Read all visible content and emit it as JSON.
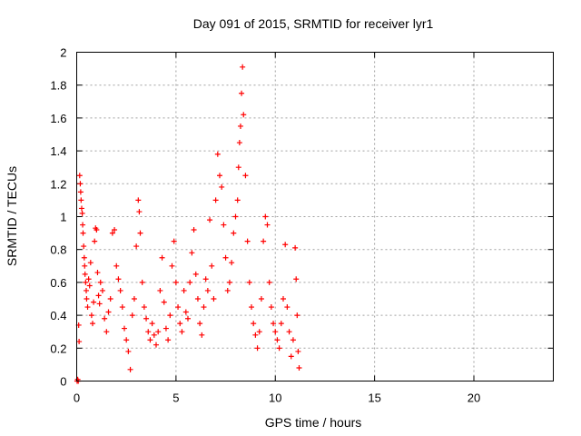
{
  "chart_data": {
    "type": "scatter",
    "title": "Day 091 of 2015, SRMTID for receiver lyr1",
    "xlabel": "GPS time / hours",
    "ylabel": "SRMTID / TECUs",
    "xlim": [
      0,
      24
    ],
    "ylim": [
      0,
      2
    ],
    "xticks": [
      0,
      5,
      10,
      15,
      20
    ],
    "yticks": [
      0,
      0.2,
      0.4,
      0.6,
      0.8,
      1,
      1.2,
      1.4,
      1.6,
      1.8,
      2
    ],
    "xtick_labels": [
      "0",
      "5",
      "10",
      "15",
      "20"
    ],
    "ytick_labels": [
      "0",
      "0.2",
      "0.4",
      "0.6",
      "0.8",
      "1",
      "1.2",
      "1.4",
      "1.6",
      "1.8",
      "2"
    ],
    "grid": true,
    "marker": "+",
    "color": "#ff0000",
    "series": [
      {
        "name": "lyr1",
        "points": [
          [
            0.02,
            0.0
          ],
          [
            0.05,
            0.01
          ],
          [
            0.08,
            0.0
          ],
          [
            0.1,
            0.34
          ],
          [
            0.12,
            0.24
          ],
          [
            0.15,
            1.25
          ],
          [
            0.18,
            1.2
          ],
          [
            0.2,
            1.15
          ],
          [
            0.22,
            1.1
          ],
          [
            0.25,
            1.05
          ],
          [
            0.28,
            1.02
          ],
          [
            0.3,
            0.95
          ],
          [
            0.32,
            0.9
          ],
          [
            0.35,
            0.82
          ],
          [
            0.38,
            0.75
          ],
          [
            0.4,
            0.7
          ],
          [
            0.42,
            0.65
          ],
          [
            0.45,
            0.6
          ],
          [
            0.48,
            0.55
          ],
          [
            0.5,
            0.5
          ],
          [
            0.55,
            0.45
          ],
          [
            0.6,
            0.62
          ],
          [
            0.65,
            0.58
          ],
          [
            0.7,
            0.72
          ],
          [
            0.75,
            0.4
          ],
          [
            0.8,
            0.35
          ],
          [
            0.85,
            0.48
          ],
          [
            0.9,
            0.85
          ],
          [
            0.95,
            0.93
          ],
          [
            1.0,
            0.92
          ],
          [
            1.05,
            0.66
          ],
          [
            1.1,
            0.52
          ],
          [
            1.15,
            0.47
          ],
          [
            1.2,
            0.6
          ],
          [
            1.3,
            0.55
          ],
          [
            1.4,
            0.38
          ],
          [
            1.5,
            0.3
          ],
          [
            1.6,
            0.42
          ],
          [
            1.7,
            0.5
          ],
          [
            1.8,
            0.9
          ],
          [
            1.9,
            0.92
          ],
          [
            2.0,
            0.7
          ],
          [
            2.1,
            0.62
          ],
          [
            2.2,
            0.55
          ],
          [
            2.3,
            0.45
          ],
          [
            2.4,
            0.32
          ],
          [
            2.5,
            0.25
          ],
          [
            2.6,
            0.18
          ],
          [
            2.7,
            0.07
          ],
          [
            2.8,
            0.4
          ],
          [
            2.9,
            0.5
          ],
          [
            3.0,
            0.82
          ],
          [
            3.1,
            1.1
          ],
          [
            3.15,
            1.03
          ],
          [
            3.2,
            0.9
          ],
          [
            3.3,
            0.6
          ],
          [
            3.4,
            0.45
          ],
          [
            3.5,
            0.38
          ],
          [
            3.6,
            0.3
          ],
          [
            3.7,
            0.25
          ],
          [
            3.8,
            0.35
          ],
          [
            3.9,
            0.28
          ],
          [
            4.0,
            0.22
          ],
          [
            4.1,
            0.3
          ],
          [
            4.2,
            0.55
          ],
          [
            4.3,
            0.75
          ],
          [
            4.4,
            0.48
          ],
          [
            4.5,
            0.32
          ],
          [
            4.6,
            0.25
          ],
          [
            4.7,
            0.4
          ],
          [
            4.8,
            0.7
          ],
          [
            4.9,
            0.85
          ],
          [
            5.0,
            0.6
          ],
          [
            5.1,
            0.45
          ],
          [
            5.2,
            0.35
          ],
          [
            5.3,
            0.3
          ],
          [
            5.4,
            0.55
          ],
          [
            5.5,
            0.42
          ],
          [
            5.6,
            0.38
          ],
          [
            5.7,
            0.6
          ],
          [
            5.8,
            0.78
          ],
          [
            5.9,
            0.92
          ],
          [
            6.0,
            0.65
          ],
          [
            6.1,
            0.5
          ],
          [
            6.2,
            0.35
          ],
          [
            6.3,
            0.28
          ],
          [
            6.4,
            0.45
          ],
          [
            6.5,
            0.62
          ],
          [
            6.6,
            0.55
          ],
          [
            6.7,
            0.98
          ],
          [
            6.8,
            0.7
          ],
          [
            6.9,
            0.5
          ],
          [
            7.0,
            1.1
          ],
          [
            7.1,
            1.38
          ],
          [
            7.2,
            1.25
          ],
          [
            7.3,
            1.18
          ],
          [
            7.4,
            0.95
          ],
          [
            7.5,
            0.75
          ],
          [
            7.6,
            0.55
          ],
          [
            7.7,
            0.6
          ],
          [
            7.8,
            0.72
          ],
          [
            7.9,
            0.9
          ],
          [
            8.0,
            1.0
          ],
          [
            8.1,
            1.1
          ],
          [
            8.15,
            1.3
          ],
          [
            8.2,
            1.45
          ],
          [
            8.25,
            1.55
          ],
          [
            8.3,
            1.75
          ],
          [
            8.35,
            1.91
          ],
          [
            8.4,
            1.62
          ],
          [
            8.5,
            1.25
          ],
          [
            8.6,
            0.85
          ],
          [
            8.7,
            0.6
          ],
          [
            8.8,
            0.45
          ],
          [
            8.9,
            0.35
          ],
          [
            9.0,
            0.28
          ],
          [
            9.1,
            0.2
          ],
          [
            9.2,
            0.3
          ],
          [
            9.3,
            0.5
          ],
          [
            9.4,
            0.85
          ],
          [
            9.5,
            1.0
          ],
          [
            9.6,
            0.95
          ],
          [
            9.7,
            0.6
          ],
          [
            9.8,
            0.45
          ],
          [
            9.9,
            0.35
          ],
          [
            10.0,
            0.3
          ],
          [
            10.1,
            0.25
          ],
          [
            10.2,
            0.2
          ],
          [
            10.3,
            0.35
          ],
          [
            10.4,
            0.5
          ],
          [
            10.5,
            0.83
          ],
          [
            10.6,
            0.45
          ],
          [
            10.7,
            0.3
          ],
          [
            10.8,
            0.15
          ],
          [
            10.9,
            0.25
          ],
          [
            11.0,
            0.81
          ],
          [
            11.05,
            0.62
          ],
          [
            11.1,
            0.4
          ],
          [
            11.15,
            0.18
          ],
          [
            11.2,
            0.08
          ]
        ]
      }
    ]
  }
}
